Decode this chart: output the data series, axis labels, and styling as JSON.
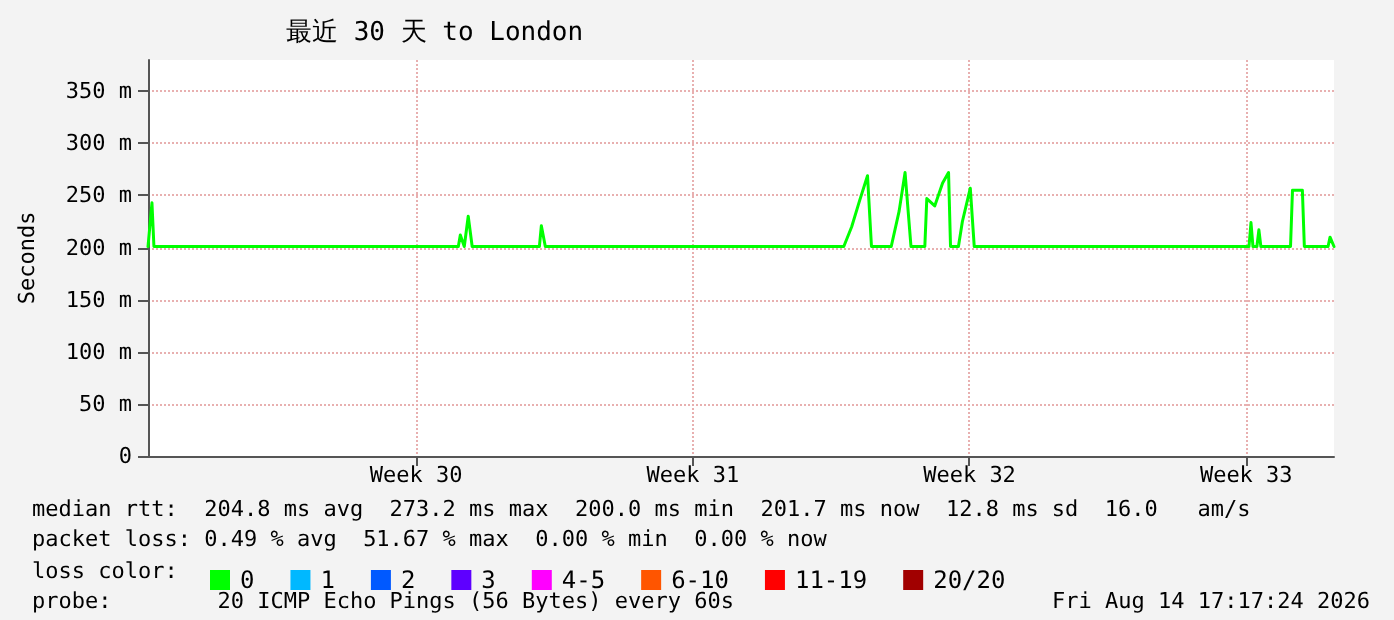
{
  "chart_data": {
    "type": "line",
    "title": "最近 30 天 to London",
    "ylabel": "Seconds",
    "xlim": [
      "2026-07-15T17:17",
      "2026-08-14T17:17"
    ],
    "xticks": [
      {
        "value": "2026-07-22T12:00",
        "label": "Week 30"
      },
      {
        "value": "2026-07-29T12:00",
        "label": "Week 31"
      },
      {
        "value": "2026-08-05T12:00",
        "label": "Week 32"
      },
      {
        "value": "2026-08-12T12:00",
        "label": "Week 33"
      }
    ],
    "ylim": [
      0,
      380
    ],
    "yticks": [
      {
        "value": 0,
        "label": "0"
      },
      {
        "value": 50,
        "label": "50 m"
      },
      {
        "value": 100,
        "label": "100 m"
      },
      {
        "value": 150,
        "label": "150 m"
      },
      {
        "value": 200,
        "label": "200 m"
      },
      {
        "value": 250,
        "label": "250 m"
      },
      {
        "value": 300,
        "label": "300 m"
      },
      {
        "value": 350,
        "label": "350 m"
      }
    ],
    "grid": true,
    "marker": "none",
    "line_style": "solid",
    "legend": "bottom left",
    "legend_title": "loss color:",
    "series": [
      {
        "name": "0",
        "color": "#00ff00",
        "x": [
          "2026-07-15T17:17",
          "2026-07-15T19:41",
          "2026-07-15T20:53",
          "2026-07-23T13:41",
          "2026-07-23T14:53",
          "2026-07-23T17:17",
          "2026-07-23T19:41",
          "2026-07-23T22:05",
          "2026-07-25T14:53",
          "2026-07-25T16:05",
          "2026-07-25T18:29",
          "2026-08-02T07:41",
          "2026-08-02T12:29",
          "2026-08-02T17:17",
          "2026-08-02T22:05",
          "2026-08-03T00:29",
          "2026-08-03T12:29",
          "2026-08-03T17:17",
          "2026-08-03T20:53",
          "2026-08-04T00:29",
          "2026-08-04T08:53",
          "2026-08-04T10:05",
          "2026-08-04T14:53",
          "2026-08-04T19:41",
          "2026-08-04T23:17",
          "2026-08-05T00:29",
          "2026-08-05T05:17",
          "2026-08-05T07:41",
          "2026-08-05T12:29",
          "2026-08-05T14:53",
          "2026-08-12T13:41",
          "2026-08-12T14:53",
          "2026-08-12T16:05",
          "2026-08-12T18:29",
          "2026-08-12T19:41",
          "2026-08-12T20:53",
          "2026-08-13T14:53",
          "2026-08-13T16:05",
          "2026-08-13T22:05",
          "2026-08-13T23:17",
          "2026-08-14T13:41",
          "2026-08-14T14:53",
          "2026-08-14T17:17"
        ],
        "values": [
          201,
          243,
          201,
          201,
          212,
          201,
          230,
          201,
          201,
          221,
          201,
          201,
          220,
          245,
          269,
          201,
          201,
          235,
          272,
          201,
          201,
          247,
          240,
          262,
          272,
          201,
          201,
          225,
          257,
          201,
          201,
          224,
          201,
          201,
          217,
          201,
          201,
          255,
          255,
          201,
          201,
          210,
          201
        ]
      },
      {
        "name": "1",
        "color": "#00b8ff"
      },
      {
        "name": "2",
        "color": "#0059ff"
      },
      {
        "name": "3",
        "color": "#5e00ff"
      },
      {
        "name": "4-5",
        "color": "#ff00ff"
      },
      {
        "name": "6-10",
        "color": "#ff5500"
      },
      {
        "name": "11-19",
        "color": "#ff0000"
      },
      {
        "name": "20/20",
        "color": "#a10000"
      }
    ],
    "annotations": [
      "median rtt:  204.8 ms avg  273.2 ms max  200.0 ms min  201.7 ms now  12.8 ms sd  16.0   am/s",
      "packet loss: 0.49 % avg  51.67 % max  0.00 % min  0.00 % now",
      "probe:        20 ICMP Echo Pings (56 Bytes) every 60s",
      "Fri Aug 14 17:17:24 2026"
    ]
  }
}
